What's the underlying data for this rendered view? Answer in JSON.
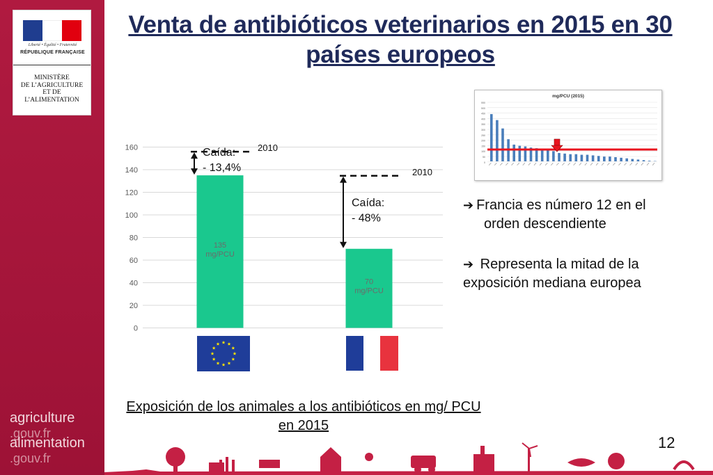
{
  "sidebar": {
    "republic_motto": "Liberté • Égalité • Fraternité",
    "republic_name": "RÉPUBLIQUE FRANÇAISE",
    "ministry_line1": "MINISTÈRE",
    "ministry_line2": "DE L’AGRICULTURE",
    "ministry_line3": "ET DE",
    "ministry_line4": "L’ALIMENTATION",
    "brand1_name": "agriculture",
    "brand1_domain": ".gouv.fr",
    "brand2_name": "alimentation",
    "brand2_domain": ".gouv.fr",
    "flag_colors": [
      "#1f3d8f",
      "#ffffff",
      "#e1000f"
    ]
  },
  "title": "Venta de antibióticos veterinarios en 2015 en 30 países europeos",
  "chart_data": {
    "type": "bar",
    "categories": [
      "Europa (UE)",
      "Francia"
    ],
    "values": [
      135,
      70
    ],
    "value_labels": [
      "135\nmg/PCU",
      "70\nmg/PCU"
    ],
    "ylim": [
      0,
      160
    ],
    "yticks": [
      0,
      20,
      40,
      60,
      80,
      100,
      120,
      140,
      160
    ],
    "bar_color": "#1ac88e",
    "reference_2010": [
      {
        "label": "2010",
        "drop_label": "Caída:",
        "drop_value": "- 13,4%"
      },
      {
        "label": "2010",
        "drop_label": "Caída:",
        "drop_value": "- 48%"
      }
    ],
    "caption": "Exposición de los animales a los antibióticos en mg/ PCU en 2015"
  },
  "thumbnail": {
    "title": "mg/PCU (2015)",
    "highlight_rank": 12,
    "bar_color": "#4a7ebb",
    "line_color": "#e8141e"
  },
  "bullets": [
    {
      "arrow": "➔",
      "text1": "Francia es número 12 en el",
      "text2": "orden descendiente"
    },
    {
      "arrow": "➔",
      "text1": "Representa la mitad de la",
      "text2": "exposición mediana europea"
    }
  ],
  "page_number": "12"
}
